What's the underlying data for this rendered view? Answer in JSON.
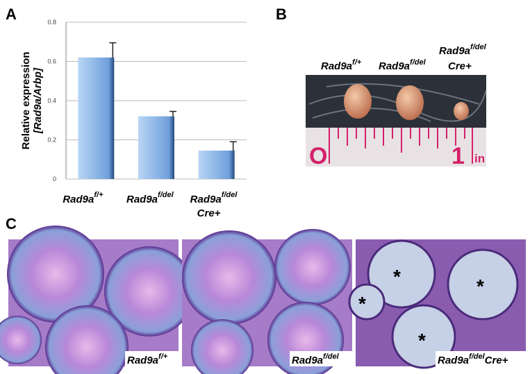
{
  "panel_labels": [
    "A",
    "B",
    "C"
  ],
  "chart_data": {
    "type": "bar",
    "y_label": [
      "Relative expression",
      "[Rad9a/Arbp]"
    ],
    "categories": [
      {
        "name": "Rad9a",
        "sup": "f/+"
      },
      {
        "name": "Rad9a",
        "sup": "f/del"
      },
      {
        "name": "Rad9a",
        "sup": "f/del",
        "line2": "Cre+"
      }
    ],
    "values": [
      0.62,
      0.32,
      0.145
    ],
    "errors": [
      0.075,
      0.025,
      0.045
    ],
    "color": "#7fb0e8",
    "ylim": [
      0,
      0.8
    ],
    "yticks": [
      0,
      0.2,
      0.4,
      0.6,
      0.8
    ],
    "grid": true
  },
  "photo": {
    "labels": [
      {
        "name": "Rad9a",
        "sup": "f/+"
      },
      {
        "name": "Rad9a",
        "sup": "f/del"
      },
      {
        "name": "Rad9a",
        "sup": "f/del",
        "line2": "Cre+"
      }
    ],
    "ruler": {
      "start": "O",
      "end": "1",
      "unit": "in"
    }
  },
  "histology": {
    "labels": [
      {
        "name": "Rad9a",
        "sup": "f/+"
      },
      {
        "name": "Rad9a",
        "sup": "f/del"
      },
      {
        "name": "Rad9a",
        "sup": "f/del",
        "suffix": "Cre+"
      }
    ],
    "marker": "*"
  }
}
